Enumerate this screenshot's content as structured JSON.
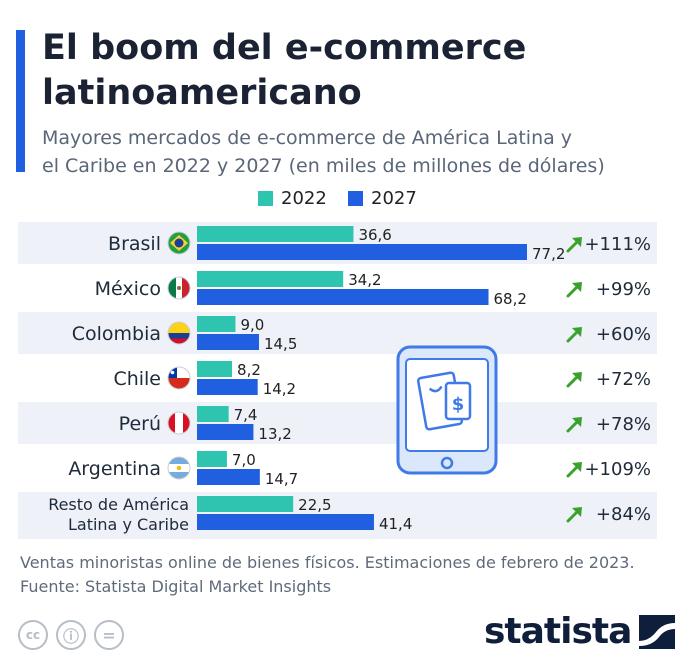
{
  "header": {
    "title_line1": "El boom del e-commerce",
    "title_line2": "latinoamericano",
    "subtitle_line1": "Mayores mercados de e-commerce de América Latina y",
    "subtitle_line2": "el Caribe en 2022 y 2027 (en miles de millones de dólares)"
  },
  "colors": {
    "accent": "#1f5fe0",
    "series_2022": "#2ec4b0",
    "series_2027": "#1f5fe0",
    "arrow": "#3aa12c",
    "row_shade": "#eef1f7"
  },
  "chart_data": {
    "type": "bar",
    "orientation": "horizontal",
    "categories": [
      "Brasil",
      "México",
      "Colombia",
      "Chile",
      "Perú",
      "Argentina",
      "Resto de América Latina y Caribe"
    ],
    "category_lines": [
      [
        "Brasil"
      ],
      [
        "México"
      ],
      [
        "Colombia"
      ],
      [
        "Chile"
      ],
      [
        "Perú"
      ],
      [
        "Argentina"
      ],
      [
        "Resto de América",
        "Latina y Caribe"
      ]
    ],
    "flags": [
      "brazil-flag-icon",
      "mexico-flag-icon",
      "colombia-flag-icon",
      "chile-flag-icon",
      "peru-flag-icon",
      "argentina-flag-icon",
      null
    ],
    "series": [
      {
        "name": "2022",
        "values": [
          36.6,
          34.2,
          9.0,
          8.2,
          7.4,
          7.0,
          22.5
        ],
        "labels": [
          "36,6",
          "34,2",
          "9,0",
          "8,2",
          "7,4",
          "7,0",
          "22,5"
        ]
      },
      {
        "name": "2027",
        "values": [
          77.2,
          68.2,
          14.5,
          14.2,
          13.2,
          14.7,
          41.4
        ],
        "labels": [
          "77,2",
          "68,2",
          "14,5",
          "14,2",
          "13,2",
          "14,7",
          "41,4"
        ]
      }
    ],
    "growth": [
      "+111%",
      "+99%",
      "+60%",
      "+72%",
      "+78%",
      "+109%",
      "+84%"
    ],
    "title": "El boom del e-commerce latinoamericano",
    "xlabel": "",
    "ylabel": "",
    "xlim": [
      0,
      80
    ],
    "legend": "top-center",
    "grid": false
  },
  "footer": {
    "note_line1": "Ventas minoristas online de bienes físicos. Estimaciones de febrero de 2023.",
    "note_line2": "Fuente: Statista Digital Market Insights",
    "brand": "statista",
    "license_icons": [
      "cc-icon",
      "attribution-icon",
      "no-derivatives-icon"
    ],
    "license_glyphs": [
      "cc",
      "ⓘ",
      "="
    ]
  }
}
